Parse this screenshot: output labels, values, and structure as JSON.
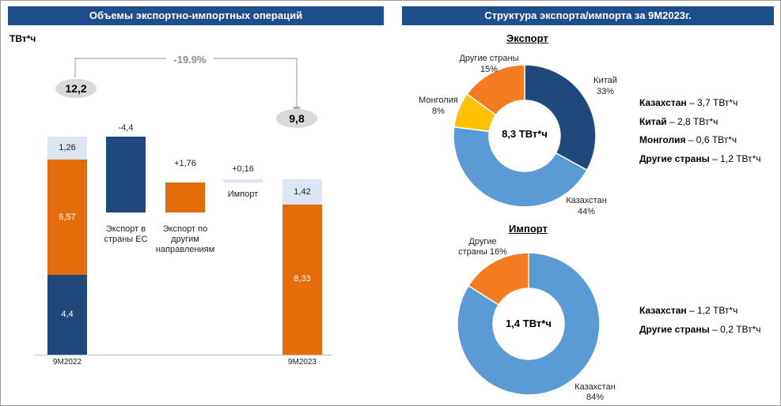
{
  "left_panel": {
    "title": "Объемы экспортно-импортных операций",
    "unit": "ТВт*ч"
  },
  "right_panel": {
    "title": "Структура экспорта/импорта за 9М2023г."
  },
  "chart_data": [
    {
      "type": "bar",
      "subtype": "waterfall",
      "categories": [
        "9М2022",
        "Экспорт в страны ЕС",
        "Экспорт по другим направлениям",
        "Импорт",
        "9М2023"
      ],
      "ylabel": "ТВт*ч",
      "start": {
        "label": "9М2022",
        "total": "12,2",
        "segments": [
          {
            "value": 4.4,
            "label": "4,4",
            "color": "#1f497d"
          },
          {
            "value": 6.57,
            "label": "6,57",
            "color": "#e46c0a"
          },
          {
            "value": 1.26,
            "label": "1,26",
            "color": "#dce6f2"
          }
        ]
      },
      "changes": [
        {
          "label": "Экспорт в страны ЕС",
          "value": -4.4,
          "value_label": "-4,4",
          "color": "#1f497d"
        },
        {
          "label": "Экспорт по другим направлениям",
          "value": 1.76,
          "value_label": "+1,76",
          "color": "#e46c0a"
        },
        {
          "label": "Импорт",
          "value": 0.16,
          "value_label": "+0,16",
          "color": "#dce6f2"
        }
      ],
      "end": {
        "label": "9М2023",
        "total": "9,8",
        "segments": [
          {
            "value": 8.33,
            "label": "8,33",
            "color": "#e46c0a"
          },
          {
            "value": 1.42,
            "label": "1,42",
            "color": "#dce6f2"
          }
        ]
      },
      "annotation": "-19.9%"
    },
    {
      "type": "pie",
      "subtype": "donut",
      "title": "Экспорт",
      "center_label": "8,3 ТВт*ч",
      "slices": [
        {
          "name": "Китай",
          "pct": "33%",
          "value": 33,
          "color": "#1f497d"
        },
        {
          "name": "Казахстан",
          "pct": "44%",
          "value": 44,
          "color": "#5b9bd5"
        },
        {
          "name": "Монголия",
          "pct": "8%",
          "value": 8,
          "color": "#ffc000"
        },
        {
          "name": "Другие страны",
          "pct": "15%",
          "value": 15,
          "color": "#f47b20"
        }
      ],
      "legend": [
        {
          "name": "Казахстан",
          "value": "– 3,7 ТВт*ч"
        },
        {
          "name": "Китай",
          "value": "– 2,8 ТВт*ч"
        },
        {
          "name": "Монголия",
          "value": "– 0,6 ТВт*ч"
        },
        {
          "name": "Другие страны",
          "value": "– 1,2 ТВт*ч"
        }
      ]
    },
    {
      "type": "pie",
      "subtype": "donut",
      "title": "Импорт",
      "center_label": "1,4 ТВт*ч",
      "slices": [
        {
          "name": "Казахстан",
          "pct": "84%",
          "value": 84,
          "color": "#5b9bd5"
        },
        {
          "name": "Другие страны",
          "pct": "16%",
          "value": 16,
          "color": "#f47b20"
        }
      ],
      "legend": [
        {
          "name": "Казахстан",
          "value": "– 1,2 ТВт*ч"
        },
        {
          "name": "Другие страны",
          "value": "– 0,2 ТВт*ч"
        }
      ]
    }
  ],
  "labels": {
    "eu_l1": "Экспорт в",
    "eu_l2": "страны ЕС",
    "other_l1": "Экспорт по",
    "other_l2": "другим",
    "other_l3": "направлениям",
    "import": "Импорт",
    "imp_other_l1": "Другие",
    "imp_other_l2": "страны 16%"
  }
}
